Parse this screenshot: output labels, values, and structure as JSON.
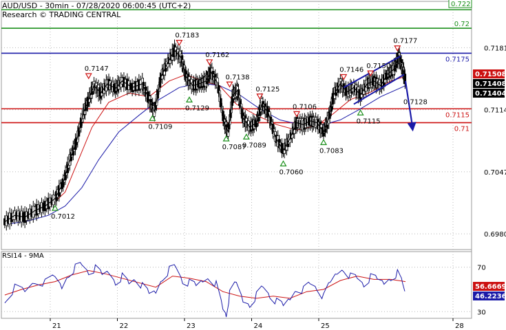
{
  "header": {
    "line1": "AUD/USD - 30min - 07/28/2020 06:00:45 (UTC+2)",
    "line2": "Research © TRADING CENTRAL"
  },
  "rsi_title": "RSI14 - 9MA",
  "colors": {
    "green": "#1a8f1a",
    "blue": "#1a1aa8",
    "red": "#cc1111",
    "price": "#000000",
    "ma_red": "#cc1111",
    "ma_blue": "#1a1aa8",
    "grid": "#b8b8b8"
  },
  "chart_data": [
    {
      "type": "line",
      "title": "AUD/USD - 30min - 07/28/2020 06:00:45 (UTC+2)",
      "x_ticks": [
        "21",
        "22",
        "23",
        "24",
        "25",
        "28"
      ],
      "y_ticks": [
        "0.7181",
        "0.7114",
        "0.7047",
        "0.6980"
      ],
      "ylim": [
        0.6963,
        0.7231
      ],
      "grid": true,
      "price_tags": [
        {
          "text": "0.71508",
          "bg": "#cc1111",
          "color": "#ffffff"
        },
        {
          "text": "0.71408",
          "bg": "#000000",
          "color": "#ffffff"
        },
        {
          "text": "0.71404",
          "bg": "#000000",
          "color": "#ffffff"
        }
      ],
      "levels": [
        {
          "value": 0.7222,
          "label": "0.722",
          "color": "green",
          "tag": true
        },
        {
          "value": 0.7202,
          "label": "0.72",
          "color": "green",
          "tag": false
        },
        {
          "value": 0.7175,
          "label": "0.7175",
          "color": "blue",
          "tag": false
        },
        {
          "value": 0.7115,
          "label": "0.7115",
          "color": "red",
          "tag": false
        },
        {
          "value": 0.71,
          "label": "0.71",
          "color": "red",
          "tag": false
        }
      ],
      "annotations": [
        {
          "text": "0.7012",
          "type": "low",
          "x": 0.0,
          "y": 0.7012
        },
        {
          "text": "0.7147",
          "type": "high",
          "x": 0.5,
          "y": 0.7147
        },
        {
          "text": "0.7109",
          "type": "low",
          "x": 1.45,
          "y": 0.7109
        },
        {
          "text": "0.7183",
          "type": "high",
          "x": 1.85,
          "y": 0.7183
        },
        {
          "text": "0.7129",
          "type": "low",
          "x": 2.0,
          "y": 0.7129
        },
        {
          "text": "0.7162",
          "type": "high",
          "x": 2.3,
          "y": 0.7162
        },
        {
          "text": "0.7138",
          "type": "high",
          "x": 2.6,
          "y": 0.7138
        },
        {
          "text": "0.7087",
          "type": "low",
          "x": 2.55,
          "y": 0.7087
        },
        {
          "text": "0.7089",
          "type": "low",
          "x": 2.85,
          "y": 0.7089
        },
        {
          "text": "0.7125",
          "type": "high",
          "x": 3.05,
          "y": 0.7125
        },
        {
          "text": "0.7060",
          "type": "low",
          "x": 3.4,
          "y": 0.706
        },
        {
          "text": "0.7106",
          "type": "high",
          "x": 3.6,
          "y": 0.7106
        },
        {
          "text": "0.7083",
          "type": "low",
          "x": 4.0,
          "y": 0.7083
        },
        {
          "text": "0.7146",
          "type": "high",
          "x": 4.3,
          "y": 0.7146
        },
        {
          "text": "0.7115",
          "type": "low",
          "x": 4.55,
          "y": 0.7115
        },
        {
          "text": "0.7150",
          "type": "high",
          "x": 4.7,
          "y": 0.715
        },
        {
          "text": "0.7177",
          "type": "high",
          "x": 5.1,
          "y": 0.7177
        },
        {
          "text": "0.7128",
          "type": "target",
          "x": 5.25,
          "y": 0.7128
        }
      ],
      "price_path": [
        [
          -0.75,
          0.6993
        ],
        [
          -0.6,
          0.7
        ],
        [
          -0.45,
          0.6998
        ],
        [
          -0.3,
          0.7005
        ],
        [
          -0.15,
          0.701
        ],
        [
          0.0,
          0.7018
        ],
        [
          0.12,
          0.7035
        ],
        [
          0.22,
          0.706
        ],
        [
          0.32,
          0.708
        ],
        [
          0.42,
          0.711
        ],
        [
          0.5,
          0.7125
        ],
        [
          0.58,
          0.714
        ],
        [
          0.68,
          0.7132
        ],
        [
          0.78,
          0.7142
        ],
        [
          0.9,
          0.7137
        ],
        [
          1.0,
          0.7145
        ],
        [
          1.15,
          0.7138
        ],
        [
          1.3,
          0.7142
        ],
        [
          1.4,
          0.7125
        ],
        [
          1.48,
          0.7112
        ],
        [
          1.58,
          0.715
        ],
        [
          1.68,
          0.7165
        ],
        [
          1.78,
          0.7178
        ],
        [
          1.88,
          0.717
        ],
        [
          1.95,
          0.715
        ],
        [
          2.05,
          0.714
        ],
        [
          2.15,
          0.7142
        ],
        [
          2.25,
          0.7145
        ],
        [
          2.32,
          0.7155
        ],
        [
          2.42,
          0.7143
        ],
        [
          2.52,
          0.71
        ],
        [
          2.58,
          0.709
        ],
        [
          2.65,
          0.713
        ],
        [
          2.72,
          0.7135
        ],
        [
          2.8,
          0.7105
        ],
        [
          2.9,
          0.7095
        ],
        [
          3.0,
          0.71
        ],
        [
          3.08,
          0.712
        ],
        [
          3.18,
          0.711
        ],
        [
          3.28,
          0.7085
        ],
        [
          3.4,
          0.707
        ],
        [
          3.5,
          0.7083
        ],
        [
          3.6,
          0.71
        ],
        [
          3.7,
          0.7098
        ],
        [
          3.8,
          0.7102
        ],
        [
          3.9,
          0.71
        ],
        [
          4.0,
          0.709
        ],
        [
          4.08,
          0.7105
        ],
        [
          4.15,
          0.713
        ],
        [
          4.25,
          0.7142
        ],
        [
          4.35,
          0.7133
        ],
        [
          4.45,
          0.7138
        ],
        [
          4.55,
          0.713
        ],
        [
          4.65,
          0.7142
        ],
        [
          4.75,
          0.7145
        ],
        [
          4.85,
          0.714
        ],
        [
          4.95,
          0.7152
        ],
        [
          5.05,
          0.7158
        ],
        [
          5.12,
          0.7172
        ],
        [
          5.18,
          0.7158
        ],
        [
          5.22,
          0.7145
        ]
      ],
      "ma_fast": [
        [
          -0.75,
          0.6993
        ],
        [
          -0.4,
          0.6999
        ],
        [
          -0.1,
          0.7008
        ],
        [
          0.15,
          0.7025
        ],
        [
          0.35,
          0.706
        ],
        [
          0.55,
          0.7095
        ],
        [
          0.8,
          0.7122
        ],
        [
          1.1,
          0.7132
        ],
        [
          1.4,
          0.7128
        ],
        [
          1.7,
          0.7145
        ],
        [
          1.95,
          0.7152
        ],
        [
          2.2,
          0.7145
        ],
        [
          2.45,
          0.714
        ],
        [
          2.7,
          0.712
        ],
        [
          3.0,
          0.7108
        ],
        [
          3.3,
          0.7098
        ],
        [
          3.6,
          0.7092
        ],
        [
          3.9,
          0.7097
        ],
        [
          4.15,
          0.711
        ],
        [
          4.4,
          0.7125
        ],
        [
          4.7,
          0.7133
        ],
        [
          5.0,
          0.7145
        ],
        [
          5.22,
          0.715
        ]
      ],
      "ma_slow": [
        [
          -0.75,
          0.699
        ],
        [
          -0.4,
          0.6994
        ],
        [
          -0.1,
          0.7
        ],
        [
          0.15,
          0.701
        ],
        [
          0.4,
          0.703
        ],
        [
          0.65,
          0.706
        ],
        [
          0.95,
          0.709
        ],
        [
          1.25,
          0.7108
        ],
        [
          1.55,
          0.7125
        ],
        [
          1.85,
          0.7138
        ],
        [
          2.15,
          0.7143
        ],
        [
          2.45,
          0.714
        ],
        [
          2.75,
          0.713
        ],
        [
          3.05,
          0.7115
        ],
        [
          3.35,
          0.7103
        ],
        [
          3.65,
          0.7098
        ],
        [
          3.95,
          0.7097
        ],
        [
          4.25,
          0.7103
        ],
        [
          4.55,
          0.7115
        ],
        [
          4.85,
          0.7128
        ],
        [
          5.22,
          0.714
        ]
      ],
      "channel_upper": [
        [
          4.3,
          0.7138
        ],
        [
          5.15,
          0.7172
        ]
      ],
      "channel_lower": [
        [
          4.45,
          0.712
        ],
        [
          5.2,
          0.7152
        ]
      ],
      "forecast_arrow": [
        [
          5.22,
          0.7145
        ],
        [
          5.32,
          0.7092
        ]
      ]
    },
    {
      "type": "line",
      "title": "RSI14 - 9MA",
      "y_ticks": [
        "70",
        "30"
      ],
      "ylim": [
        24,
        84
      ],
      "value_tags": [
        {
          "text": "56.6669",
          "bg": "#cc1111",
          "color": "#ffffff"
        },
        {
          "text": "46.2236",
          "bg": "#1a1aa8",
          "color": "#ffffff"
        }
      ],
      "rsi": [
        [
          -0.75,
          42
        ],
        [
          -0.6,
          52
        ],
        [
          -0.45,
          48
        ],
        [
          -0.3,
          58
        ],
        [
          -0.15,
          55
        ],
        [
          0.0,
          60
        ],
        [
          0.1,
          52
        ],
        [
          0.2,
          65
        ],
        [
          0.3,
          70
        ],
        [
          0.4,
          72
        ],
        [
          0.5,
          66
        ],
        [
          0.6,
          68
        ],
        [
          0.7,
          62
        ],
        [
          0.8,
          66
        ],
        [
          0.9,
          58
        ],
        [
          1.0,
          62
        ],
        [
          1.1,
          55
        ],
        [
          1.2,
          60
        ],
        [
          1.3,
          52
        ],
        [
          1.4,
          45
        ],
        [
          1.5,
          48
        ],
        [
          1.6,
          62
        ],
        [
          1.7,
          68
        ],
        [
          1.8,
          70
        ],
        [
          1.9,
          58
        ],
        [
          2.0,
          55
        ],
        [
          2.1,
          52
        ],
        [
          2.2,
          58
        ],
        [
          2.3,
          62
        ],
        [
          2.4,
          55
        ],
        [
          2.5,
          32
        ],
        [
          2.55,
          28
        ],
        [
          2.6,
          45
        ],
        [
          2.7,
          55
        ],
        [
          2.8,
          40
        ],
        [
          2.9,
          38
        ],
        [
          3.0,
          45
        ],
        [
          3.1,
          52
        ],
        [
          3.2,
          45
        ],
        [
          3.3,
          38
        ],
        [
          3.4,
          34
        ],
        [
          3.5,
          42
        ],
        [
          3.6,
          52
        ],
        [
          3.7,
          50
        ],
        [
          3.8,
          55
        ],
        [
          3.9,
          52
        ],
        [
          4.0,
          42
        ],
        [
          4.1,
          55
        ],
        [
          4.2,
          65
        ],
        [
          4.3,
          70
        ],
        [
          4.4,
          62
        ],
        [
          4.5,
          60
        ],
        [
          4.6,
          55
        ],
        [
          4.7,
          60
        ],
        [
          4.8,
          58
        ],
        [
          4.9,
          56
        ],
        [
          5.0,
          62
        ],
        [
          5.1,
          65
        ],
        [
          5.18,
          55
        ],
        [
          5.22,
          46
        ]
      ],
      "rsi_ma": [
        [
          -0.75,
          45
        ],
        [
          -0.5,
          50
        ],
        [
          -0.25,
          54
        ],
        [
          0.0,
          57
        ],
        [
          0.25,
          63
        ],
        [
          0.5,
          67
        ],
        [
          0.75,
          64
        ],
        [
          1.0,
          60
        ],
        [
          1.25,
          56
        ],
        [
          1.5,
          52
        ],
        [
          1.75,
          62
        ],
        [
          2.0,
          60
        ],
        [
          2.25,
          57
        ],
        [
          2.5,
          48
        ],
        [
          2.75,
          44
        ],
        [
          3.0,
          42
        ],
        [
          3.25,
          44
        ],
        [
          3.5,
          42
        ],
        [
          3.75,
          48
        ],
        [
          4.0,
          50
        ],
        [
          4.25,
          58
        ],
        [
          4.5,
          62
        ],
        [
          4.75,
          59
        ],
        [
          5.0,
          59
        ],
        [
          5.22,
          57
        ]
      ]
    }
  ]
}
